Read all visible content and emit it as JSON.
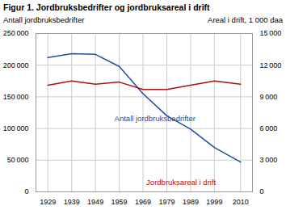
{
  "chart_data": {
    "type": "line",
    "title": "Figur 1. Jordbruksbedrifter og jordbruksareal i drift",
    "ylabel": "Antall jordbruksbedrifter",
    "y2label": "Areal i drift, 1 000 daa",
    "x": [
      1929,
      1939,
      1949,
      1959,
      1969,
      1979,
      1989,
      1999,
      2010
    ],
    "series": [
      {
        "color": "#1F4E9B",
        "axis": "y",
        "values": [
          212000,
          218000,
          217000,
          198000,
          155000,
          120000,
          99000,
          70000,
          47000
        ]
      },
      {
        "color": "#AA1111",
        "axis": "y2",
        "values": [
          10100,
          10500,
          10200,
          10400,
          9700,
          9700,
          10100,
          10500,
          10200
        ]
      }
    ],
    "xlim": [
      1924,
      2015
    ],
    "xticks": [
      1929,
      1939,
      1949,
      1959,
      1969,
      1979,
      1989,
      1999,
      2010
    ],
    "ylim": [
      0,
      250000
    ],
    "yticks": [
      0,
      {
        "value": 50000,
        "label": "50 000"
      },
      {
        "value": 100000,
        "label": "100 000"
      },
      {
        "value": 150000,
        "label": "150 000"
      },
      {
        "value": 200000,
        "label": "200 000"
      },
      {
        "value": 250000,
        "label": "250 000"
      }
    ],
    "y2lim": [
      0,
      15000
    ],
    "y2ticks": [
      0,
      {
        "value": 3000,
        "label": "3 000"
      },
      {
        "value": 6000,
        "label": "6 000"
      },
      {
        "value": 9000,
        "label": "9 000"
      },
      {
        "value": 12000,
        "label": "12 000"
      },
      {
        "value": 15000,
        "label": "15 000"
      }
    ],
    "grid": true,
    "annotations": [
      {
        "text": "Antall jordbruksbedrifter",
        "x": 1974,
        "y": 112000,
        "color": "#1F4E9B"
      },
      {
        "text": "Jordbruksareal i drift",
        "x": 1985,
        "y": 11200,
        "color": "#AA1111"
      }
    ]
  }
}
